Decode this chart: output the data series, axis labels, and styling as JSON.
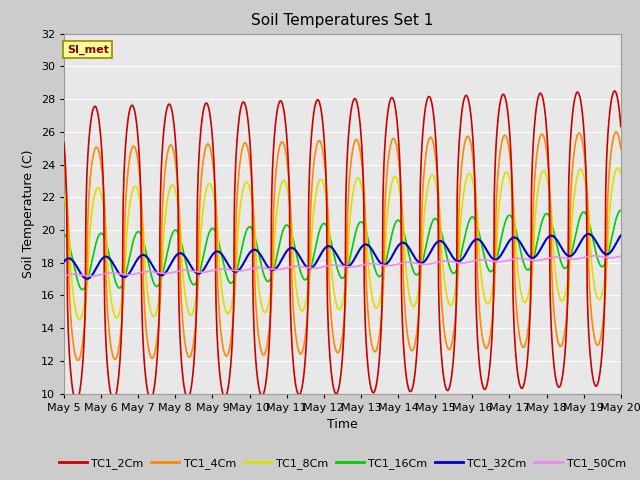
{
  "title": "Soil Temperatures Set 1",
  "xlabel": "Time",
  "ylabel": "Soil Temperature (C)",
  "ylim": [
    10,
    32
  ],
  "yticks": [
    10,
    12,
    14,
    16,
    18,
    20,
    22,
    24,
    26,
    28,
    30,
    32
  ],
  "x_tick_labels": [
    "May 5",
    "May 6",
    "May 7",
    "May 8",
    "May 9",
    "May 10",
    "May 11",
    "May 12",
    "May 13",
    "May 14",
    "May 15",
    "May 16",
    "May 17",
    "May 18",
    "May 19",
    "May 20"
  ],
  "series": {
    "TC1_2Cm": {
      "color": "#cc0000",
      "lw": 1.2
    },
    "TC1_4Cm": {
      "color": "#ff8800",
      "lw": 1.2
    },
    "TC1_8Cm": {
      "color": "#dddd00",
      "lw": 1.2
    },
    "TC1_16Cm": {
      "color": "#00cc00",
      "lw": 1.2
    },
    "TC1_32Cm": {
      "color": "#0000cc",
      "lw": 1.5
    },
    "TC1_50Cm": {
      "color": "#ee88ee",
      "lw": 1.2
    }
  },
  "annotation_text": "SI_met",
  "annotation_box_color": "#ffff99",
  "annotation_border_color": "#998800",
  "annotation_text_color": "#880000",
  "fig_bg_color": "#cccccc",
  "plot_bg_color": "#e8e8e8",
  "grid_color": "#ffffff",
  "title_fontsize": 11,
  "axis_fontsize": 9,
  "tick_fontsize": 8
}
